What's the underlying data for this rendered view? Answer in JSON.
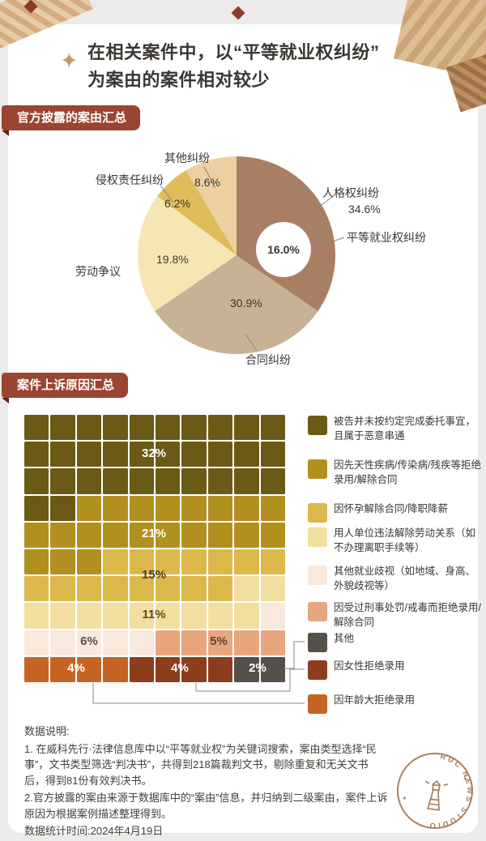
{
  "page": {
    "title_lines": [
      "在相关案件中，以“平等就业权纠纷”",
      "为案由的案件相对较少"
    ]
  },
  "icons": {
    "sparkle": "✦"
  },
  "sections": {
    "pie_badge": "官方披露的案由汇总",
    "waffle_badge": "案件上诉原因汇总"
  },
  "chart_data": [
    {
      "type": "pie",
      "title": "官方披露的案由汇总",
      "start_angle_deg": 0,
      "direction": "clockwise",
      "slices": [
        {
          "label": "人格权纠纷",
          "value": 34.6,
          "display": "34.6%",
          "color": "#a97f63"
        },
        {
          "label": "合同纠纷",
          "value": 30.9,
          "display": "30.9%",
          "color": "#c7b295"
        },
        {
          "label": "劳动争议",
          "value": 19.8,
          "display": "19.8%",
          "color": "#f6e6b4"
        },
        {
          "label": "侵权责任纠纷",
          "value": 6.2,
          "display": "6.2%",
          "color": "#dfbc5a"
        },
        {
          "label": "其他纠纷",
          "value": 8.6,
          "display": "8.6%",
          "color": "#edcfa2"
        }
      ],
      "callout": {
        "label": "平等就业权纠纷",
        "value": 16.0,
        "display": "16.0%",
        "parent_slice": "人格权纠纷"
      }
    },
    {
      "type": "waffle",
      "title": "案件上诉原因汇总",
      "total_cells": 100,
      "segments": [
        {
          "label": "被告并未按约定完成委托事宜，且属于恶意串通",
          "value": 32,
          "display": "32%",
          "color": "#6a5a16",
          "label_color": "#ffffff"
        },
        {
          "label": "因先天性疾病/传染病/残疾等拒绝录用/解除合同",
          "value": 21,
          "display": "21%",
          "color": "#b2901f",
          "label_color": "#ffffff"
        },
        {
          "label": "因怀孕解除合同/降职降薪",
          "value": 15,
          "display": "15%",
          "color": "#dcb84a",
          "label_color": "#4a3f1d"
        },
        {
          "label": "用人单位违法解除劳动关系（如不办理离职手续等）",
          "value": 11,
          "display": "11%",
          "color": "#f2df9f",
          "label_color": "#5a4c25"
        },
        {
          "label": "其他就业歧视（如地域、身高、外貌歧视等）",
          "value": 6,
          "display": "6%",
          "color": "#f9e8dc",
          "label_color": "#5f5048"
        },
        {
          "label": "因受过刑事处罚/戒毒而拒绝录用/解除合同",
          "value": 5,
          "display": "5%",
          "color": "#e7a67e",
          "label_color": "#5f4334"
        },
        {
          "label": "因年龄大拒绝录用",
          "value": 4,
          "display": "4%",
          "color": "#c66424",
          "label_color": "#ffffff"
        },
        {
          "label": "因女性拒绝录用",
          "value": 4,
          "display": "4%",
          "color": "#8b3d1e",
          "label_color": "#ffffff"
        },
        {
          "label": "其他",
          "value": 2,
          "display": "2%",
          "color": "#555049",
          "label_color": "#ffffff"
        }
      ],
      "legend_order": [
        0,
        1,
        2,
        3,
        4,
        5,
        8,
        7,
        6
      ]
    }
  ],
  "notes": {
    "heading": "数据说明:",
    "line1": "1. 在威科先行·法律信息库中以“平等就业权”为关键词搜索，案由类型选择“民事”，文书类型筛选“判决书”，共得到218篇裁判文书，剔除重复和无关文书后，得到81份有效判决书。",
    "line2": "2.官方披露的案由来源于数据库中的“案由”信息，并归纳到二级案由，案件上诉原因为根据案例描述整理得到。",
    "line3": "数据统计时间:2024年4月19日"
  },
  "stamp": {
    "text": "RUC NEWS STUDIO",
    "star": "✦"
  }
}
